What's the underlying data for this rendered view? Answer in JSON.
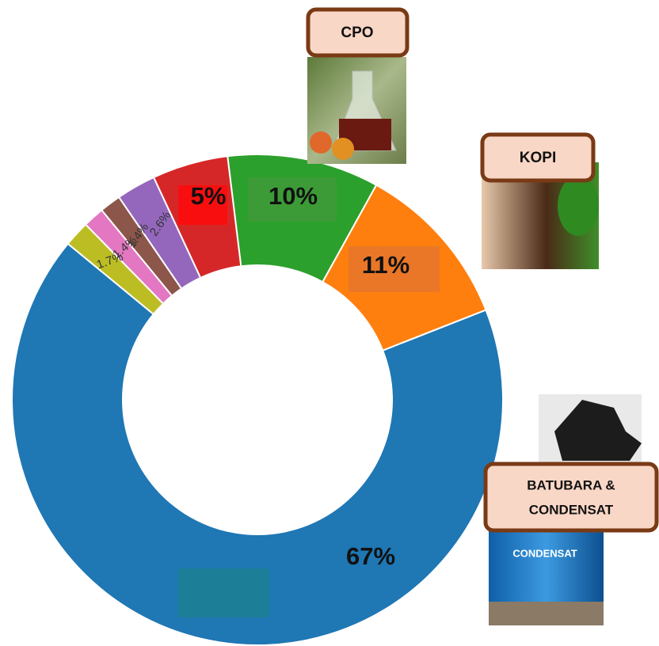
{
  "chart_data": {
    "type": "donut",
    "values": [
      10,
      11,
      67,
      1.7,
      1.4,
      1.4,
      2.6,
      5
    ],
    "value_labels": [
      "10%",
      "11%",
      "67%",
      "1.7%",
      "1.4%",
      "1.4%",
      "2.6%",
      "5%"
    ],
    "colors": [
      "#2ca02c",
      "#ff7f0e",
      "#1f77b4",
      "#bcbd22",
      "#e377c2",
      "#8c564b",
      "#9467bd",
      "#d62728"
    ]
  },
  "callouts": [
    {
      "label": "CPO"
    },
    {
      "label": "KOPI"
    },
    {
      "label_lines": [
        "BATUBARA &",
        "CONDENSAT"
      ],
      "image_text": "CONDENSAT"
    }
  ]
}
